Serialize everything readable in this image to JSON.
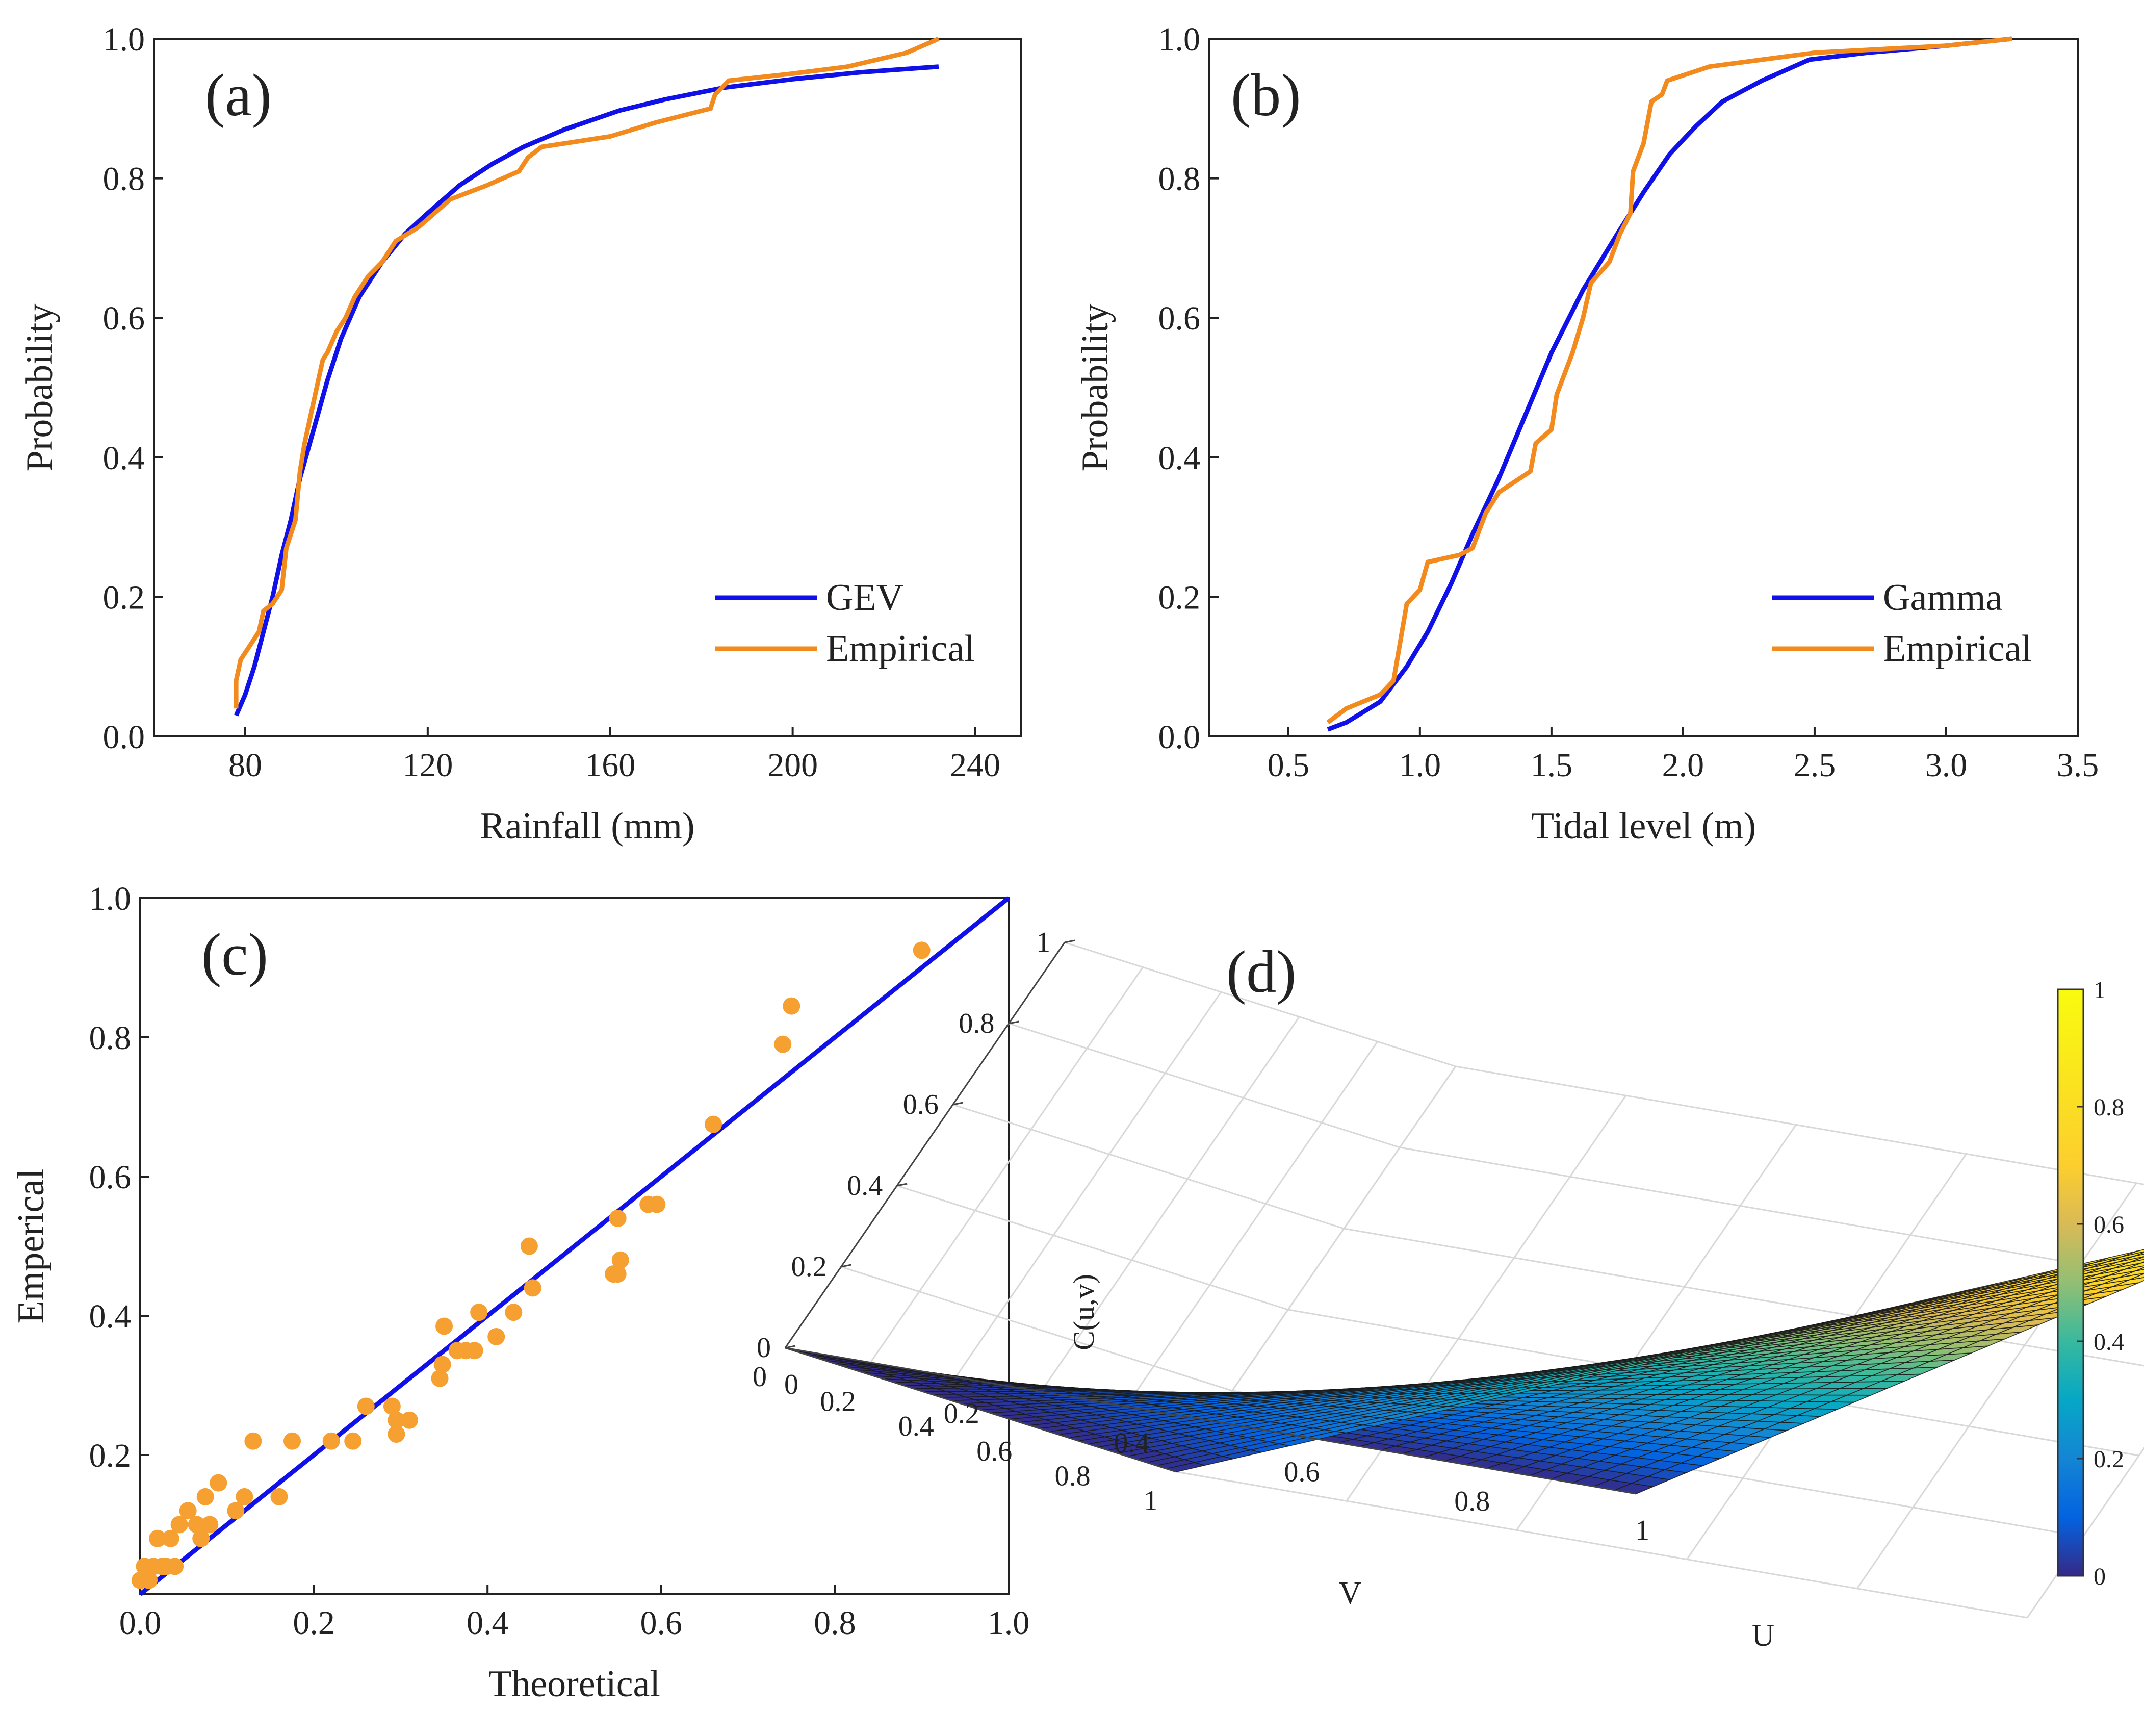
{
  "chart_data": [
    {
      "type": "line",
      "panel_label": "(a)",
      "xlabel": "Rainfall (mm)",
      "ylabel": "Probability",
      "xlim": [
        60,
        250
      ],
      "ylim": [
        0,
        1
      ],
      "xticks": [
        80,
        120,
        160,
        200,
        240
      ],
      "yticks": [
        0.0,
        0.2,
        0.4,
        0.6,
        0.8,
        1.0
      ],
      "xtick_labels": [
        "80",
        "120",
        "160",
        "200",
        "240"
      ],
      "ytick_labels": [
        "0.0",
        "0.2",
        "0.4",
        "0.6",
        "0.8",
        "1.0"
      ],
      "legend_position": "bottom-right",
      "series": [
        {
          "name": "GEV",
          "color": "#1010e8",
          "x": [
            78,
            80,
            82,
            84,
            86,
            88,
            90,
            92,
            95,
            98,
            101,
            105,
            110,
            115,
            120,
            127,
            134,
            141,
            150,
            162,
            172,
            185,
            200,
            215,
            232
          ],
          "y": [
            0.03,
            0.06,
            0.1,
            0.15,
            0.2,
            0.26,
            0.31,
            0.37,
            0.44,
            0.51,
            0.57,
            0.63,
            0.68,
            0.72,
            0.75,
            0.79,
            0.82,
            0.845,
            0.87,
            0.897,
            0.913,
            0.93,
            0.942,
            0.952,
            0.96
          ]
        },
        {
          "name": "Empirical",
          "color": "#f28a1e",
          "x": [
            78,
            78,
            79,
            81,
            83,
            84,
            86,
            88,
            89,
            91,
            92,
            93,
            95,
            96,
            97,
            98,
            100,
            102,
            104,
            107,
            110,
            113,
            118,
            125,
            133,
            140,
            142,
            145,
            150,
            160,
            170,
            182,
            183,
            186,
            200,
            212,
            225,
            232
          ],
          "y": [
            0.04,
            0.08,
            0.11,
            0.13,
            0.15,
            0.18,
            0.19,
            0.21,
            0.27,
            0.31,
            0.38,
            0.42,
            0.48,
            0.51,
            0.54,
            0.55,
            0.58,
            0.6,
            0.63,
            0.66,
            0.68,
            0.71,
            0.73,
            0.77,
            0.79,
            0.81,
            0.83,
            0.845,
            0.85,
            0.86,
            0.88,
            0.9,
            0.92,
            0.94,
            0.95,
            0.96,
            0.98,
            1.0
          ]
        }
      ]
    },
    {
      "type": "line",
      "panel_label": "(b)",
      "xlabel": "Tidal level (m)",
      "ylabel": "Probability",
      "xlim": [
        0.2,
        3.5
      ],
      "ylim": [
        0,
        1
      ],
      "xticks": [
        0.5,
        1.0,
        1.5,
        2.0,
        2.5,
        3.0,
        3.5
      ],
      "yticks": [
        0.0,
        0.2,
        0.4,
        0.6,
        0.8,
        1.0
      ],
      "xtick_labels": [
        "0.5",
        "1.0",
        "1.5",
        "2.0",
        "2.5",
        "3.0",
        "3.5"
      ],
      "ytick_labels": [
        "0.0",
        "0.2",
        "0.4",
        "0.6",
        "0.8",
        "1.0"
      ],
      "legend_position": "bottom-right",
      "series": [
        {
          "name": "Gamma",
          "color": "#1010e8",
          "x": [
            0.65,
            0.72,
            0.85,
            0.95,
            1.03,
            1.12,
            1.2,
            1.3,
            1.4,
            1.5,
            1.62,
            1.75,
            1.85,
            1.95,
            2.05,
            2.15,
            2.3,
            2.48,
            2.7,
            3.0,
            3.25
          ],
          "y": [
            0.01,
            0.02,
            0.05,
            0.1,
            0.15,
            0.22,
            0.29,
            0.37,
            0.46,
            0.55,
            0.64,
            0.72,
            0.78,
            0.835,
            0.875,
            0.91,
            0.94,
            0.97,
            0.98,
            0.99,
            1.0
          ]
        },
        {
          "name": "Empirical",
          "color": "#f28a1e",
          "x": [
            0.65,
            0.72,
            0.85,
            0.9,
            0.95,
            1.0,
            1.03,
            1.15,
            1.2,
            1.25,
            1.3,
            1.42,
            1.44,
            1.5,
            1.52,
            1.58,
            1.62,
            1.65,
            1.72,
            1.76,
            1.8,
            1.81,
            1.85,
            1.88,
            1.92,
            1.94,
            2.1,
            2.3,
            2.5,
            3.0,
            3.25
          ],
          "y": [
            0.02,
            0.04,
            0.06,
            0.08,
            0.19,
            0.21,
            0.25,
            0.26,
            0.27,
            0.32,
            0.35,
            0.38,
            0.42,
            0.44,
            0.49,
            0.55,
            0.6,
            0.65,
            0.68,
            0.72,
            0.75,
            0.81,
            0.85,
            0.91,
            0.92,
            0.94,
            0.96,
            0.97,
            0.98,
            0.99,
            1.0
          ]
        }
      ]
    },
    {
      "type": "scatter",
      "panel_label": "(c)",
      "xlabel": "Theoretical",
      "ylabel": "Emperical",
      "xlim": [
        0,
        1
      ],
      "ylim": [
        0,
        1
      ],
      "xticks": [
        0.0,
        0.2,
        0.4,
        0.6,
        0.8,
        1.0
      ],
      "yticks": [
        0.2,
        0.4,
        0.6,
        0.8,
        1.0
      ],
      "xtick_labels": [
        "0.0",
        "0.2",
        "0.4",
        "0.6",
        "0.8",
        "1.0"
      ],
      "ytick_labels": [
        "0.2",
        "0.4",
        "0.6",
        "0.8",
        "1.0"
      ],
      "reference_line": {
        "x": [
          0,
          1
        ],
        "y": [
          0,
          1
        ],
        "color": "#1010e8"
      },
      "point_color": "#f5a030",
      "points": [
        [
          0.0,
          0.02
        ],
        [
          0.005,
          0.04
        ],
        [
          0.01,
          0.02
        ],
        [
          0.015,
          0.04
        ],
        [
          0.02,
          0.08
        ],
        [
          0.025,
          0.04
        ],
        [
          0.03,
          0.04
        ],
        [
          0.035,
          0.08
        ],
        [
          0.04,
          0.04
        ],
        [
          0.045,
          0.1
        ],
        [
          0.055,
          0.12
        ],
        [
          0.065,
          0.1
        ],
        [
          0.07,
          0.08
        ],
        [
          0.075,
          0.14
        ],
        [
          0.08,
          0.1
        ],
        [
          0.09,
          0.16
        ],
        [
          0.11,
          0.12
        ],
        [
          0.12,
          0.14
        ],
        [
          0.13,
          0.22
        ],
        [
          0.16,
          0.14
        ],
        [
          0.175,
          0.22
        ],
        [
          0.22,
          0.22
        ],
        [
          0.245,
          0.22
        ],
        [
          0.26,
          0.27
        ],
        [
          0.29,
          0.27
        ],
        [
          0.295,
          0.23
        ],
        [
          0.295,
          0.25
        ],
        [
          0.31,
          0.25
        ],
        [
          0.345,
          0.31
        ],
        [
          0.348,
          0.33
        ],
        [
          0.35,
          0.385
        ],
        [
          0.365,
          0.35
        ],
        [
          0.375,
          0.35
        ],
        [
          0.385,
          0.35
        ],
        [
          0.39,
          0.405
        ],
        [
          0.41,
          0.37
        ],
        [
          0.43,
          0.405
        ],
        [
          0.448,
          0.5
        ],
        [
          0.452,
          0.44
        ],
        [
          0.545,
          0.46
        ],
        [
          0.55,
          0.54
        ],
        [
          0.55,
          0.46
        ],
        [
          0.553,
          0.48
        ],
        [
          0.585,
          0.56
        ],
        [
          0.595,
          0.56
        ],
        [
          0.66,
          0.675
        ],
        [
          0.74,
          0.79
        ],
        [
          0.75,
          0.845
        ],
        [
          0.9,
          0.925
        ]
      ]
    },
    {
      "type": "surface",
      "panel_label": "(d)",
      "xlabel": "U",
      "ylabel": "V",
      "zlabel": "C(u,v)",
      "function": "C(u,v) = u·v",
      "grid_resolution": 40,
      "u_ticks": [
        "0",
        "0.2",
        "0.4",
        "0.6",
        "0.8",
        "1"
      ],
      "v_ticks": [
        "0",
        "0.2",
        "0.4",
        "0.6",
        "0.8",
        "1"
      ],
      "z_ticks": [
        "0",
        "0.2",
        "0.4",
        "0.6",
        "0.8",
        "1"
      ],
      "colormap": "parula",
      "colorbar_ticks": [
        "0",
        "0.2",
        "0.4",
        "0.6",
        "0.8",
        "1"
      ],
      "colorbar_range": [
        0,
        1
      ]
    }
  ]
}
